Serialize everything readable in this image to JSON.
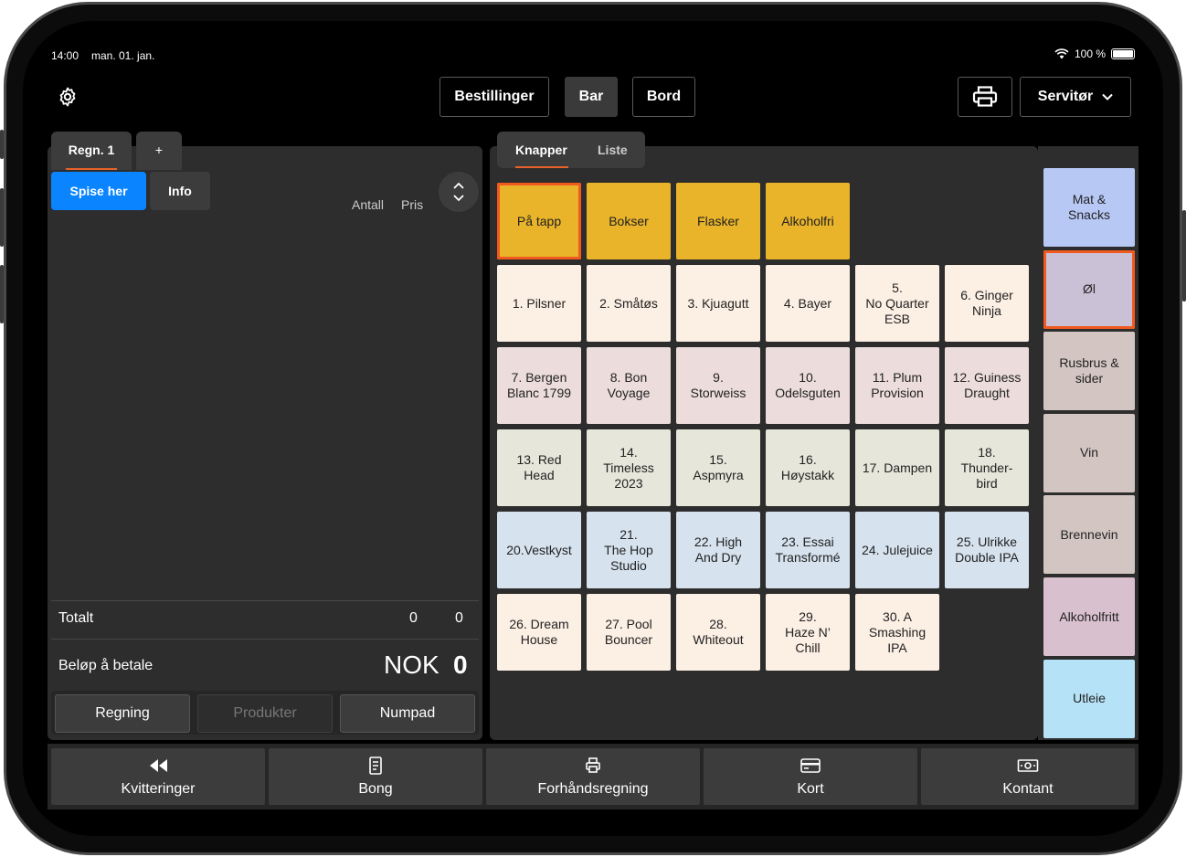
{
  "status": {
    "time": "14:00",
    "date": "man. 01. jan.",
    "battery": "100 %"
  },
  "topbar": {
    "nav": [
      "Bestillinger",
      "Bar",
      "Bord"
    ],
    "active_nav": "Bar",
    "server_label": "Servitør"
  },
  "order": {
    "tabs": {
      "regn": "Regn. 1",
      "add": "+"
    },
    "mode_buttons": {
      "spise": "Spise her",
      "info": "Info"
    },
    "columns": {
      "antall": "Antall",
      "pris": "Pris"
    },
    "totalt": {
      "label": "Totalt",
      "antall": "0",
      "pris": "0"
    },
    "belop": {
      "label": "Beløp å betale",
      "currency": "NOK",
      "value": "0"
    },
    "bottom_tabs": {
      "regning": "Regning",
      "produkter": "Produkter",
      "numpad": "Numpad"
    }
  },
  "products": {
    "view_tabs": {
      "knapper": "Knapper",
      "liste": "Liste"
    },
    "subcategories": [
      {
        "label": "På tapp",
        "color": "#e9b42a",
        "selected": true
      },
      {
        "label": "Bokser",
        "color": "#e9b42a"
      },
      {
        "label": "Flasker",
        "color": "#e9b42a"
      },
      {
        "label": "Alkoholfri",
        "color": "#e9b42a"
      }
    ],
    "rows": [
      {
        "color": "#fcefe4",
        "items": [
          "1. Pilsner",
          "2. Småtøs",
          "3. Kjuagutt",
          "4. Bayer",
          "5.\nNo Quarter\nESB",
          "6. Ginger\nNinja"
        ]
      },
      {
        "color": "#ecdcdc",
        "items": [
          "7. Bergen\nBlanc 1799",
          "8. Bon\nVoyage",
          "9.\nStorweiss",
          "10.\nOdelsguten",
          "11. Plum\nProvision",
          "12. Guiness\nDraught"
        ]
      },
      {
        "color": "#e6e6da",
        "items": [
          "13. Red\nHead",
          "14.\nTimeless\n2023",
          "15.\nAspmyra",
          "16.\nHøystakk",
          "17. Dampen",
          "18.\nThunder-\nbird"
        ]
      },
      {
        "color": "#d6e2ee",
        "items": [
          "20.Vestkyst",
          "21.\nThe Hop\nStudio",
          "22. High\nAnd Dry",
          "23. Essai\nTransformé",
          "24. Julejuice",
          "25. Ulrikke\nDouble IPA"
        ]
      },
      {
        "color": "#fcefe4",
        "items": [
          "26. Dream\nHouse",
          "27. Pool\nBouncer",
          "28.\nWhiteout",
          "29.\nHaze N’\nChill",
          "30. A\nSmashing\nIPA"
        ]
      }
    ]
  },
  "categories": [
    {
      "label": "Mat &\nSnacks",
      "color": "#b7c8f5"
    },
    {
      "label": "Øl",
      "color": "#cbc1d6",
      "selected": true
    },
    {
      "label": "Rusbrus &\nsider",
      "color": "#d3c6c2"
    },
    {
      "label": "Vin",
      "color": "#d3c6c2"
    },
    {
      "label": "Brennevin",
      "color": "#d3c6c2"
    },
    {
      "label": "Alkoholfritt",
      "color": "#d9c0ce"
    },
    {
      "label": "Utleie",
      "color": "#b6e2f8"
    }
  ],
  "actions": [
    {
      "label": "Kvitteringer",
      "icon": "rewind-icon"
    },
    {
      "label": "Bong",
      "icon": "receipt-icon"
    },
    {
      "label": "Forhåndsregning",
      "icon": "printer-icon"
    },
    {
      "label": "Kort",
      "icon": "card-icon"
    },
    {
      "label": "Kontant",
      "icon": "cash-icon"
    }
  ]
}
